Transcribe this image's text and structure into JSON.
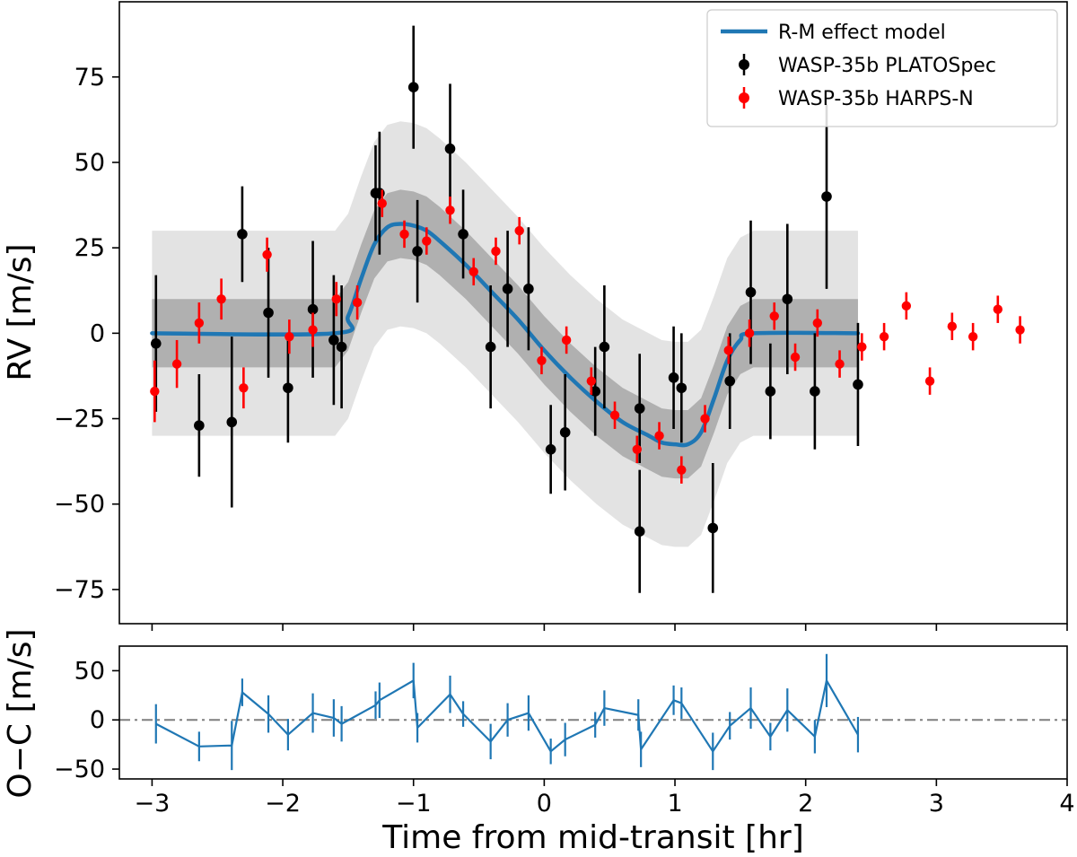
{
  "chart_data": [
    {
      "type": "scatter",
      "panel": "main",
      "xlabel": "",
      "ylabel": "RV [m/s]",
      "xlim": [
        -3.25,
        4.0
      ],
      "ylim": [
        -85,
        97
      ],
      "yticks": [
        -75,
        -50,
        -25,
        0,
        25,
        50,
        75
      ],
      "ytick_labels": [
        "−75",
        "−50",
        "−25",
        "0",
        "25",
        "50",
        "75"
      ],
      "legend": {
        "position": "top-right",
        "entries": [
          "R-M effect model",
          "WASP-35b PLATOSpec",
          "WASP-35b HARPS-N"
        ]
      },
      "bands": [
        {
          "name": "outer band",
          "half_width": 30
        },
        {
          "name": "inner band",
          "half_width": 10
        }
      ],
      "model": {
        "name": "R-M effect model",
        "color": "#1f77b4",
        "x": [
          -3.0,
          -1.6,
          -1.5,
          -1.4,
          -1.3,
          -1.2,
          -1.1,
          -1.0,
          -0.9,
          -0.8,
          -0.6,
          -0.4,
          -0.2,
          0.0,
          0.2,
          0.4,
          0.6,
          0.8,
          0.9,
          1.0,
          1.1,
          1.2,
          1.3,
          1.4,
          1.5,
          1.6,
          2.4
        ],
        "y": [
          0,
          0,
          5,
          16,
          26,
          31,
          32,
          31.5,
          30,
          27,
          20,
          12,
          4,
          -5,
          -13,
          -20,
          -26,
          -30,
          -32,
          -32.5,
          -32.5,
          -29,
          -19,
          -8,
          -2,
          0,
          0
        ]
      },
      "series": [
        {
          "name": "WASP-35b PLATOSpec",
          "color": "#000000",
          "points": [
            {
              "x": -2.97,
              "y": -3,
              "err": 20
            },
            {
              "x": -2.64,
              "y": -27,
              "err": 15
            },
            {
              "x": -2.39,
              "y": -26,
              "err": 25
            },
            {
              "x": -2.31,
              "y": 29,
              "err": 14
            },
            {
              "x": -2.11,
              "y": 6,
              "err": 19
            },
            {
              "x": -1.96,
              "y": -16,
              "err": 16
            },
            {
              "x": -1.77,
              "y": 7,
              "err": 20
            },
            {
              "x": -1.61,
              "y": -2,
              "err": 19
            },
            {
              "x": -1.55,
              "y": -4,
              "err": 18
            },
            {
              "x": -1.29,
              "y": 41,
              "err": 14
            },
            {
              "x": -1.26,
              "y": 41,
              "err": 18
            },
            {
              "x": -1.0,
              "y": 72,
              "err": 18
            },
            {
              "x": -0.97,
              "y": 24,
              "err": 15
            },
            {
              "x": -0.72,
              "y": 54,
              "err": 19
            },
            {
              "x": -0.62,
              "y": 29,
              "err": 13
            },
            {
              "x": -0.41,
              "y": -4,
              "err": 18
            },
            {
              "x": -0.28,
              "y": 13,
              "err": 17
            },
            {
              "x": -0.12,
              "y": 13,
              "err": 18
            },
            {
              "x": 0.05,
              "y": -34,
              "err": 13
            },
            {
              "x": 0.16,
              "y": -29,
              "err": 17
            },
            {
              "x": 0.39,
              "y": -17,
              "err": 13
            },
            {
              "x": 0.46,
              "y": -4,
              "err": 18
            },
            {
              "x": 0.73,
              "y": -22,
              "err": 16
            },
            {
              "x": 0.73,
              "y": -58,
              "err": 18
            },
            {
              "x": 0.99,
              "y": -13,
              "err": 15
            },
            {
              "x": 1.05,
              "y": -16,
              "err": 16
            },
            {
              "x": 1.29,
              "y": -57,
              "err": 19
            },
            {
              "x": 1.42,
              "y": -14,
              "err": 14
            },
            {
              "x": 1.58,
              "y": 12,
              "err": 21
            },
            {
              "x": 1.73,
              "y": -17,
              "err": 14
            },
            {
              "x": 1.86,
              "y": 10,
              "err": 22
            },
            {
              "x": 2.07,
              "y": -17,
              "err": 17
            },
            {
              "x": 2.16,
              "y": 40,
              "err": 27
            },
            {
              "x": 2.4,
              "y": -15,
              "err": 18
            }
          ]
        },
        {
          "name": "WASP-35b HARPS-N",
          "color": "#ff0000",
          "points": [
            {
              "x": -2.98,
              "y": -17,
              "err": 9
            },
            {
              "x": -2.81,
              "y": -9,
              "err": 7
            },
            {
              "x": -2.64,
              "y": 3,
              "err": 6
            },
            {
              "x": -2.47,
              "y": 10,
              "err": 6
            },
            {
              "x": -2.3,
              "y": -16,
              "err": 6
            },
            {
              "x": -2.12,
              "y": 23,
              "err": 5
            },
            {
              "x": -1.95,
              "y": -1,
              "err": 5
            },
            {
              "x": -1.77,
              "y": 1,
              "err": 5
            },
            {
              "x": -1.59,
              "y": 10,
              "err": 5
            },
            {
              "x": -1.43,
              "y": 9,
              "err": 5
            },
            {
              "x": -1.24,
              "y": 38,
              "err": 4
            },
            {
              "x": -1.07,
              "y": 29,
              "err": 4
            },
            {
              "x": -0.9,
              "y": 27,
              "err": 4
            },
            {
              "x": -0.72,
              "y": 36,
              "err": 4
            },
            {
              "x": -0.54,
              "y": 18,
              "err": 4
            },
            {
              "x": -0.37,
              "y": 24,
              "err": 4
            },
            {
              "x": -0.19,
              "y": 30,
              "err": 4
            },
            {
              "x": -0.02,
              "y": -8,
              "err": 4
            },
            {
              "x": 0.17,
              "y": -2,
              "err": 4
            },
            {
              "x": 0.36,
              "y": -14,
              "err": 4
            },
            {
              "x": 0.54,
              "y": -24,
              "err": 4
            },
            {
              "x": 0.71,
              "y": -34,
              "err": 4
            },
            {
              "x": 0.88,
              "y": -30,
              "err": 4
            },
            {
              "x": 1.05,
              "y": -40,
              "err": 4
            },
            {
              "x": 1.23,
              "y": -25,
              "err": 4
            },
            {
              "x": 1.41,
              "y": -5,
              "err": 4
            },
            {
              "x": 1.57,
              "y": 0,
              "err": 4
            },
            {
              "x": 1.76,
              "y": 5,
              "err": 4
            },
            {
              "x": 1.92,
              "y": -7,
              "err": 4
            },
            {
              "x": 2.09,
              "y": 3,
              "err": 4
            },
            {
              "x": 2.26,
              "y": -9,
              "err": 4
            },
            {
              "x": 2.43,
              "y": -4,
              "err": 4
            },
            {
              "x": 2.6,
              "y": -1,
              "err": 4
            },
            {
              "x": 2.77,
              "y": 8,
              "err": 4
            },
            {
              "x": 2.95,
              "y": -14,
              "err": 4
            },
            {
              "x": 3.12,
              "y": 2,
              "err": 4
            },
            {
              "x": 3.28,
              "y": -1,
              "err": 4
            },
            {
              "x": 3.47,
              "y": 7,
              "err": 4
            },
            {
              "x": 3.64,
              "y": 1,
              "err": 4
            }
          ]
        }
      ]
    },
    {
      "type": "line",
      "panel": "residuals",
      "xlabel": "Time from mid-transit [hr]",
      "ylabel": "O−C [m/s]",
      "xlim": [
        -3.25,
        4.0
      ],
      "ylim": [
        -60,
        75
      ],
      "xticks": [
        -3,
        -2,
        -1,
        0,
        1,
        2,
        3,
        4
      ],
      "xtick_labels": [
        "−3",
        "−2",
        "−1",
        "0",
        "1",
        "2",
        "3",
        "4"
      ],
      "yticks": [
        -50,
        0,
        50
      ],
      "ytick_labels": [
        "−50",
        "0",
        "50"
      ],
      "reference_line": {
        "y": 0,
        "style": "dash-dot",
        "color": "#7f7f7f"
      },
      "series": [
        {
          "name": "O−C",
          "color": "#1f77b4",
          "points": [
            {
              "x": -2.97,
              "y": -4,
              "err": 20
            },
            {
              "x": -2.64,
              "y": -27,
              "err": 15
            },
            {
              "x": -2.39,
              "y": -26,
              "err": 25
            },
            {
              "x": -2.31,
              "y": 28,
              "err": 14
            },
            {
              "x": -2.11,
              "y": 6,
              "err": 19
            },
            {
              "x": -1.96,
              "y": -15,
              "err": 16
            },
            {
              "x": -1.77,
              "y": 7,
              "err": 20
            },
            {
              "x": -1.61,
              "y": 2,
              "err": 19
            },
            {
              "x": -1.55,
              "y": -4,
              "err": 18
            },
            {
              "x": -1.29,
              "y": 15,
              "err": 14
            },
            {
              "x": -1.26,
              "y": 20,
              "err": 18
            },
            {
              "x": -1.0,
              "y": 40,
              "err": 18
            },
            {
              "x": -0.97,
              "y": -8,
              "err": 15
            },
            {
              "x": -0.72,
              "y": 26,
              "err": 19
            },
            {
              "x": -0.62,
              "y": 6,
              "err": 13
            },
            {
              "x": -0.41,
              "y": -22,
              "err": 18
            },
            {
              "x": -0.28,
              "y": 0,
              "err": 17
            },
            {
              "x": -0.12,
              "y": 7,
              "err": 18
            },
            {
              "x": 0.05,
              "y": -32,
              "err": 13
            },
            {
              "x": 0.16,
              "y": -20,
              "err": 17
            },
            {
              "x": 0.39,
              "y": -5,
              "err": 13
            },
            {
              "x": 0.46,
              "y": 12,
              "err": 18
            },
            {
              "x": 0.72,
              "y": 5,
              "err": 16
            },
            {
              "x": 0.74,
              "y": -30,
              "err": 18
            },
            {
              "x": 0.99,
              "y": 20,
              "err": 15
            },
            {
              "x": 1.05,
              "y": 17,
              "err": 16
            },
            {
              "x": 1.29,
              "y": -32,
              "err": 19
            },
            {
              "x": 1.42,
              "y": -6,
              "err": 14
            },
            {
              "x": 1.58,
              "y": 12,
              "err": 21
            },
            {
              "x": 1.73,
              "y": -17,
              "err": 14
            },
            {
              "x": 1.86,
              "y": 10,
              "err": 22
            },
            {
              "x": 2.07,
              "y": -17,
              "err": 17
            },
            {
              "x": 2.16,
              "y": 40,
              "err": 27
            },
            {
              "x": 2.4,
              "y": -15,
              "err": 18
            }
          ]
        }
      ]
    }
  ]
}
